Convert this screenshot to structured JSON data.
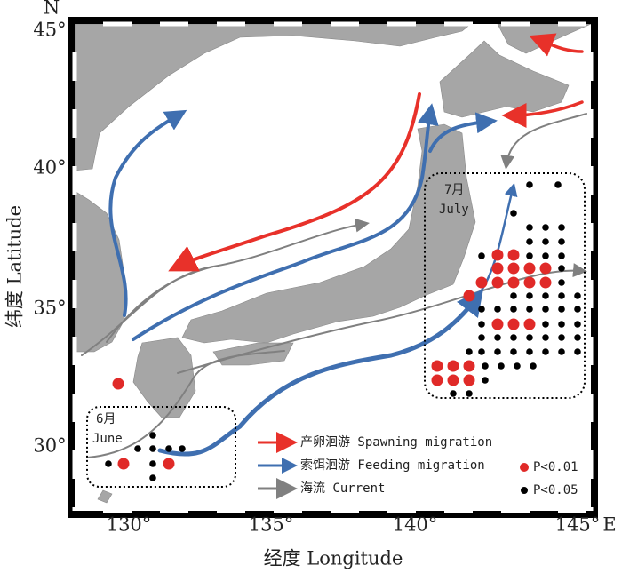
{
  "map": {
    "north": "N",
    "east": "E",
    "lat_ticks": [
      "45°",
      "40°",
      "35°",
      "30°"
    ],
    "lon_ticks": [
      "130°",
      "135°",
      "140°",
      "145°"
    ],
    "y_axis_title": "纬度 Latitude",
    "x_axis_title": "经度 Longitude",
    "box_june": {
      "month_cn": "6月",
      "month_en": "June"
    },
    "box_july": {
      "month_cn": "7月",
      "month_en": "July"
    },
    "legend": {
      "spawning": "产卵洄游 Spawning migration",
      "feeding": "索饵洄游 Feeding migration",
      "current": "海流 Current",
      "p001": "P<0.01",
      "p005": "P<0.05"
    }
  }
}
